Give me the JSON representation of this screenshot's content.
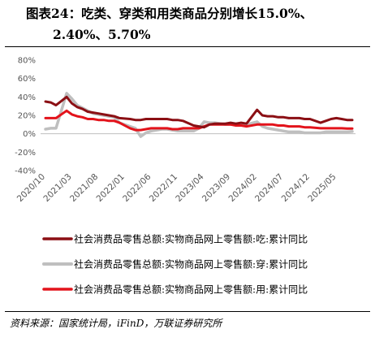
{
  "header": {
    "title_line1": "图表24：吃类、穿类和用类商品分别增长15.0%、",
    "title_line2": "2.40%、5.70%"
  },
  "source": "资料来源：国家统计局，iFinD，万联证券研究所",
  "chart_data": {
    "type": "line",
    "title": "",
    "xlabel": "",
    "ylabel": "",
    "ylim": [
      -40,
      80
    ],
    "yticks": [
      80,
      60,
      40,
      20,
      0,
      -20,
      -40
    ],
    "ytick_labels": [
      "80%",
      "60%",
      "40%",
      "20%",
      "0%",
      "-20%",
      "-40%"
    ],
    "xtick_labels": [
      "2020/10",
      "2021/03",
      "2021/08",
      "2022/01",
      "2022/06",
      "2022/11",
      "2023/04",
      "2023/09",
      "2024/02",
      "2024/07",
      "2024/12",
      "2025/05"
    ],
    "legend_position": "bottom",
    "grid": false,
    "series": [
      {
        "name": "社会消费品零售总额:实物商品网上零售额:吃:累计同比",
        "color": "#8B0F14",
        "x": [
          "2020/10",
          "2020/11",
          "2020/12",
          "2021/02",
          "2021/03",
          "2021/04",
          "2021/05",
          "2021/06",
          "2021/07",
          "2021/08",
          "2021/09",
          "2021/10",
          "2021/11",
          "2021/12",
          "2022/02",
          "2022/03",
          "2022/04",
          "2022/05",
          "2022/06",
          "2022/07",
          "2022/08",
          "2022/09",
          "2022/10",
          "2022/11",
          "2022/12",
          "2023/02",
          "2023/03",
          "2023/04",
          "2023/05",
          "2023/06",
          "2023/07",
          "2023/08",
          "2023/09",
          "2023/10",
          "2023/11",
          "2023/12",
          "2024/02",
          "2024/03",
          "2024/04",
          "2024/05",
          "2024/06",
          "2024/07",
          "2024/08",
          "2024/09",
          "2024/10",
          "2024/11",
          "2024/12",
          "2025/02",
          "2025/03",
          "2025/04",
          "2025/05",
          "2025/06",
          "2025/07",
          "2025/08"
        ],
        "values": [
          35,
          34,
          31,
          40,
          33,
          29,
          27,
          24,
          23,
          22,
          21,
          20,
          19,
          17,
          16,
          15,
          15,
          16,
          16,
          16,
          16,
          16,
          15,
          15,
          14,
          9,
          8,
          7,
          10,
          11,
          11,
          11,
          12,
          11,
          12,
          11,
          26,
          20,
          19,
          19,
          18,
          18,
          17,
          17,
          17,
          16,
          16,
          12,
          14,
          16,
          17,
          16,
          15,
          15
        ]
      },
      {
        "name": "社会消费品零售总额:实物商品网上零售额:穿:累计同比",
        "color": "#BFBFBF",
        "x": [
          "2020/10",
          "2020/11",
          "2020/12",
          "2021/02",
          "2021/03",
          "2021/04",
          "2021/05",
          "2021/06",
          "2021/07",
          "2021/08",
          "2021/09",
          "2021/10",
          "2021/11",
          "2021/12",
          "2022/02",
          "2022/03",
          "2022/04",
          "2022/05",
          "2022/06",
          "2022/07",
          "2022/08",
          "2022/09",
          "2022/10",
          "2022/11",
          "2022/12",
          "2023/02",
          "2023/03",
          "2023/04",
          "2023/05",
          "2023/06",
          "2023/07",
          "2023/08",
          "2023/09",
          "2023/10",
          "2023/11",
          "2023/12",
          "2024/02",
          "2024/03",
          "2024/04",
          "2024/05",
          "2024/06",
          "2024/07",
          "2024/08",
          "2024/09",
          "2024/10",
          "2024/11",
          "2024/12",
          "2025/02",
          "2025/03",
          "2025/04",
          "2025/05",
          "2025/06",
          "2025/07",
          "2025/08"
        ],
        "values": [
          5,
          6,
          6,
          44,
          38,
          31,
          28,
          25,
          22,
          21,
          20,
          19,
          18,
          12,
          8,
          6,
          -3,
          1,
          3,
          4,
          5,
          5,
          4,
          3,
          3,
          3,
          6,
          13,
          12,
          12,
          11,
          10,
          10,
          10,
          11,
          10,
          13,
          8,
          6,
          5,
          4,
          3,
          2,
          2,
          2,
          1,
          1,
          1,
          2,
          2,
          2,
          2,
          2,
          2.4
        ]
      },
      {
        "name": "社会消费品零售总额:实物商品网上零售额:用:累计同比",
        "color": "#E3131B",
        "x": [
          "2020/10",
          "2020/11",
          "2020/12",
          "2021/02",
          "2021/03",
          "2021/04",
          "2021/05",
          "2021/06",
          "2021/07",
          "2021/08",
          "2021/09",
          "2021/10",
          "2021/11",
          "2021/12",
          "2022/02",
          "2022/03",
          "2022/04",
          "2022/05",
          "2022/06",
          "2022/07",
          "2022/08",
          "2022/09",
          "2022/10",
          "2022/11",
          "2022/12",
          "2023/02",
          "2023/03",
          "2023/04",
          "2023/05",
          "2023/06",
          "2023/07",
          "2023/08",
          "2023/09",
          "2023/10",
          "2023/11",
          "2023/12",
          "2024/02",
          "2024/03",
          "2024/04",
          "2024/05",
          "2024/06",
          "2024/07",
          "2024/08",
          "2024/09",
          "2024/10",
          "2024/11",
          "2024/12",
          "2025/02",
          "2025/03",
          "2025/04",
          "2025/05",
          "2025/06",
          "2025/07",
          "2025/08"
        ],
        "values": [
          17,
          17,
          17,
          25,
          21,
          19,
          18,
          16,
          16,
          15,
          15,
          14,
          14,
          12,
          6,
          4,
          4,
          5,
          6,
          6,
          6,
          6,
          5,
          5,
          6,
          6,
          6,
          8,
          10,
          10,
          10,
          10,
          10,
          9,
          9,
          8,
          10,
          10,
          10,
          10,
          9,
          9,
          8,
          8,
          8,
          7,
          7,
          6,
          6,
          6,
          6,
          6,
          5.7,
          5.7
        ]
      }
    ]
  }
}
